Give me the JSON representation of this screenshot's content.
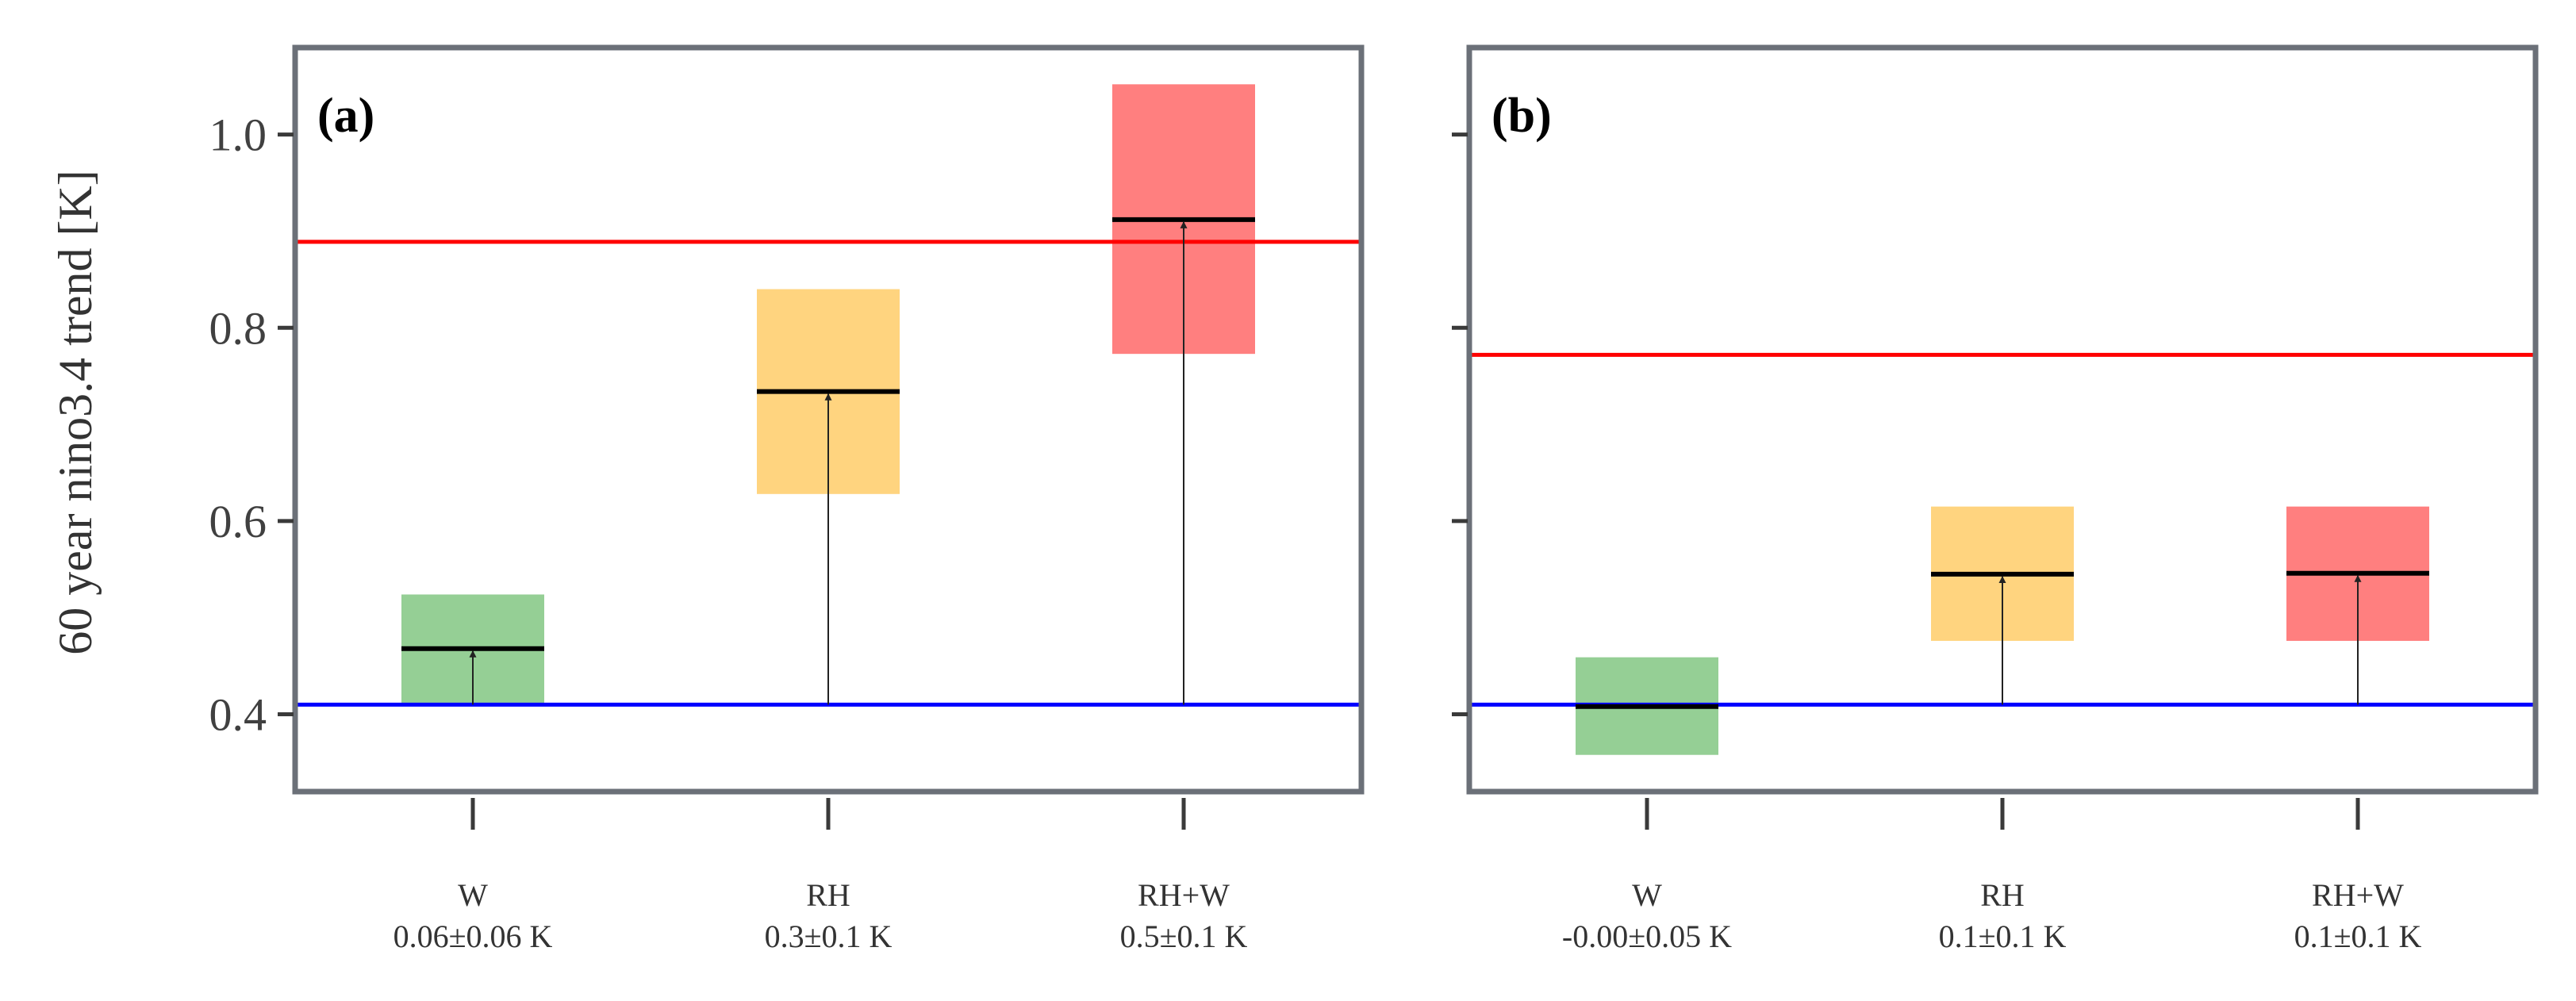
{
  "chart_data": {
    "type": "bar",
    "ylabel": "60 year nino3.4 trend [K]",
    "ylim": [
      0.32,
      1.09
    ],
    "yticks": [
      "0.4",
      "0.6",
      "0.8",
      "1.0"
    ],
    "panels": [
      {
        "label": "(a)",
        "baseline": 0.41,
        "reference": 0.889,
        "baseline_color": "#0000ff",
        "reference_color": "#ff0000",
        "categories": [
          {
            "name": "W",
            "delta": "0.06±0.06 K",
            "low": 0.41,
            "high": 0.524,
            "mean": 0.468,
            "color": "#2ca02c"
          },
          {
            "name": "RH",
            "delta": "0.3±0.1 K",
            "low": 0.628,
            "high": 0.84,
            "mean": 0.734,
            "color": "#ffaa00"
          },
          {
            "name": "RH+W",
            "delta": "0.5±0.1 K",
            "low": 0.773,
            "high": 1.052,
            "mean": 0.912,
            "color": "#ff0000"
          }
        ]
      },
      {
        "label": "(b)",
        "baseline": 0.41,
        "reference": 0.772,
        "baseline_color": "#0000ff",
        "reference_color": "#ff0000",
        "categories": [
          {
            "name": "W",
            "delta": "-0.00±0.05 K",
            "low": 0.358,
            "high": 0.459,
            "mean": 0.408,
            "color": "#2ca02c"
          },
          {
            "name": "RH",
            "delta": "0.1±0.1 K",
            "low": 0.476,
            "high": 0.615,
            "mean": 0.545,
            "color": "#ffaa00"
          },
          {
            "name": "RH+W",
            "delta": "0.1±0.1 K",
            "low": 0.476,
            "high": 0.615,
            "mean": 0.546,
            "color": "#ff0000"
          }
        ]
      }
    ]
  }
}
